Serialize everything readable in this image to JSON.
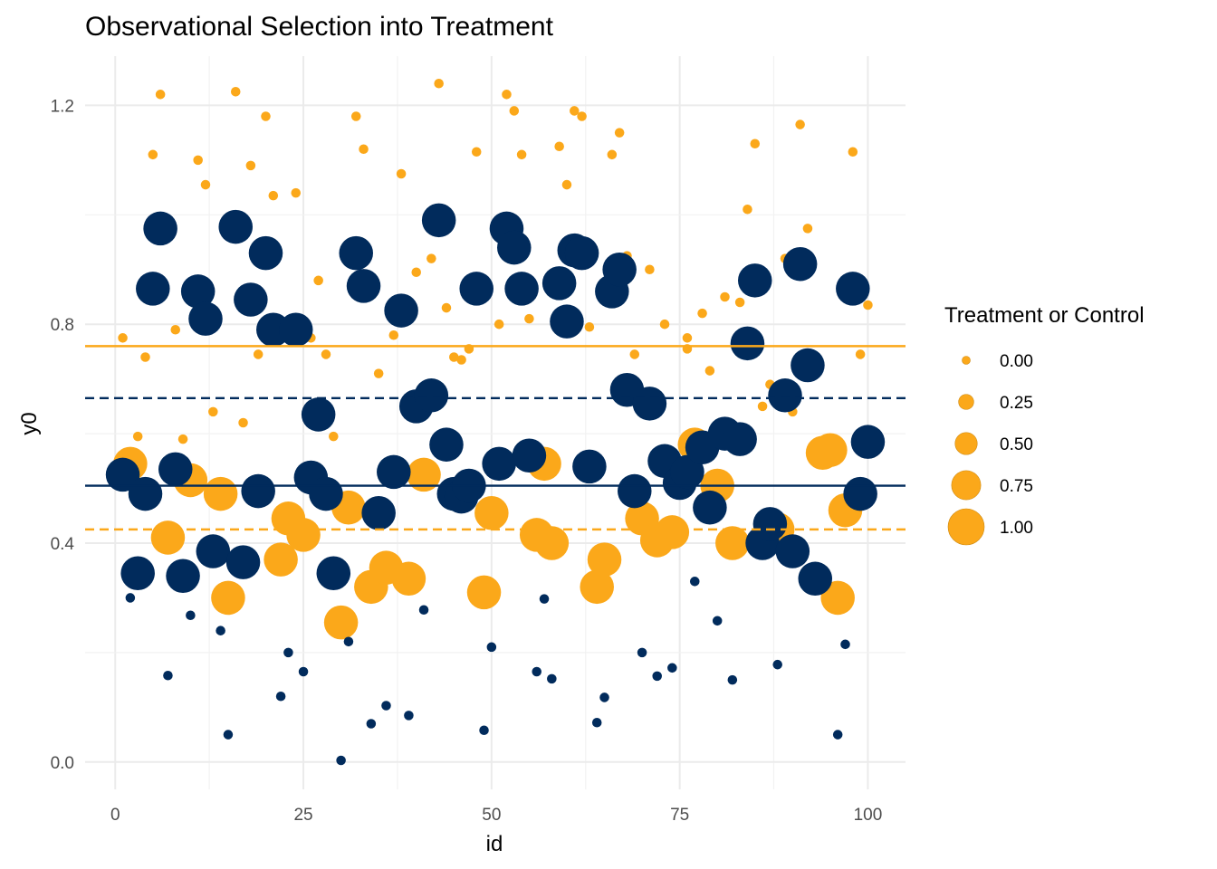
{
  "chart_data": {
    "type": "scatter",
    "title": "Observational Selection into Treatment",
    "xlabel": "id",
    "ylabel": "y0",
    "xlim": [
      -4,
      105
    ],
    "ylim": [
      -0.05,
      1.29
    ],
    "x_ticks": [
      0,
      25,
      50,
      75,
      100
    ],
    "x_tick_labels": [
      "0",
      "25",
      "50",
      "75",
      "100"
    ],
    "y_ticks": [
      0.0,
      0.4,
      0.8,
      1.2
    ],
    "y_tick_labels": [
      "0.0",
      "0.4",
      "0.8",
      "1.2"
    ],
    "grid": true,
    "legend": {
      "title": "Treatment or Control",
      "position": "right",
      "entries": [
        "0.00",
        "0.25",
        "0.50",
        "0.75",
        "1.00"
      ],
      "sizes": [
        0,
        0.25,
        0.5,
        0.75,
        1
      ]
    },
    "colors": {
      "treated": "#012B5C",
      "control": "#FBA81A"
    },
    "hlines": [
      {
        "group": "treated",
        "y": 0.505,
        "style": "solid"
      },
      {
        "group": "treated",
        "y": 0.665,
        "style": "dashed"
      },
      {
        "group": "control",
        "y": 0.76,
        "style": "solid"
      },
      {
        "group": "control",
        "y": 0.425,
        "style": "dashed"
      }
    ],
    "series": [
      {
        "group": "treated",
        "points": [
          [
            1,
            0.525,
            0.92
          ],
          [
            2,
            0.3,
            0.05
          ],
          [
            3,
            0.345,
            0.92
          ],
          [
            4,
            0.49,
            0.92
          ],
          [
            5,
            0.865,
            0.92
          ],
          [
            6,
            0.975,
            0.92
          ],
          [
            7,
            0.158,
            0.05
          ],
          [
            8,
            0.535,
            0.92
          ],
          [
            9,
            0.34,
            0.92
          ],
          [
            10,
            0.268,
            0.05
          ],
          [
            11,
            0.86,
            0.92
          ],
          [
            12,
            0.81,
            0.92
          ],
          [
            13,
            0.385,
            0.92
          ],
          [
            14,
            0.24,
            0.05
          ],
          [
            15,
            0.05,
            0.05
          ],
          [
            16,
            0.978,
            0.92
          ],
          [
            17,
            0.365,
            0.92
          ],
          [
            18,
            0.845,
            0.92
          ],
          [
            19,
            0.495,
            0.92
          ],
          [
            20,
            0.93,
            0.92
          ],
          [
            21,
            0.79,
            0.92
          ],
          [
            22,
            0.12,
            0.05
          ],
          [
            23,
            0.2,
            0.05
          ],
          [
            24,
            0.79,
            0.92
          ],
          [
            25,
            0.165,
            0.05
          ],
          [
            26,
            0.52,
            0.92
          ],
          [
            27,
            0.635,
            0.92
          ],
          [
            28,
            0.49,
            0.92
          ],
          [
            29,
            0.345,
            0.92
          ],
          [
            30,
            0.003,
            0.05
          ],
          [
            31,
            0.22,
            0.05
          ],
          [
            32,
            0.93,
            0.92
          ],
          [
            33,
            0.87,
            0.92
          ],
          [
            34,
            0.07,
            0.05
          ],
          [
            35,
            0.455,
            0.92
          ],
          [
            36,
            0.103,
            0.05
          ],
          [
            37,
            0.53,
            0.92
          ],
          [
            38,
            0.825,
            0.92
          ],
          [
            39,
            0.085,
            0.05
          ],
          [
            40,
            0.65,
            0.92
          ],
          [
            41,
            0.278,
            0.05
          ],
          [
            42,
            0.67,
            0.92
          ],
          [
            44,
            0.58,
            0.92
          ],
          [
            43,
            0.99,
            0.92
          ],
          [
            45,
            0.49,
            0.92
          ],
          [
            46,
            0.485,
            0.92
          ],
          [
            47,
            0.505,
            0.92
          ],
          [
            48,
            0.865,
            0.92
          ],
          [
            49,
            0.058,
            0.05
          ],
          [
            50,
            0.21,
            0.05
          ],
          [
            51,
            0.545,
            0.92
          ],
          [
            52,
            0.975,
            0.92
          ],
          [
            53,
            0.94,
            0.92
          ],
          [
            54,
            0.865,
            0.92
          ],
          [
            55,
            0.56,
            0.92
          ],
          [
            56,
            0.165,
            0.05
          ],
          [
            57,
            0.298,
            0.05
          ],
          [
            58,
            0.152,
            0.05
          ],
          [
            59,
            0.875,
            0.92
          ],
          [
            60,
            0.805,
            0.92
          ],
          [
            61,
            0.935,
            0.92
          ],
          [
            62,
            0.93,
            0.92
          ],
          [
            63,
            0.54,
            0.92
          ],
          [
            64,
            0.072,
            0.05
          ],
          [
            65,
            0.118,
            0.05
          ],
          [
            66,
            0.86,
            0.92
          ],
          [
            67,
            0.9,
            0.92
          ],
          [
            68,
            0.68,
            0.92
          ],
          [
            69,
            0.495,
            0.92
          ],
          [
            70,
            0.2,
            0.05
          ],
          [
            71,
            0.655,
            0.92
          ],
          [
            72,
            0.157,
            0.05
          ],
          [
            73,
            0.55,
            0.92
          ],
          [
            74,
            0.172,
            0.05
          ],
          [
            75,
            0.51,
            0.92
          ],
          [
            76,
            0.53,
            0.92
          ],
          [
            77,
            0.33,
            0.05
          ],
          [
            78,
            0.575,
            0.92
          ],
          [
            79,
            0.465,
            0.92
          ],
          [
            80,
            0.258,
            0.05
          ],
          [
            81,
            0.6,
            0.92
          ],
          [
            82,
            0.15,
            0.05
          ],
          [
            83,
            0.59,
            0.92
          ],
          [
            84,
            0.765,
            0.92
          ],
          [
            85,
            0.88,
            0.92
          ],
          [
            86,
            0.4,
            0.92
          ],
          [
            87,
            0.435,
            0.92
          ],
          [
            88,
            0.178,
            0.05
          ],
          [
            89,
            0.67,
            0.92
          ],
          [
            90,
            0.385,
            0.92
          ],
          [
            91,
            0.91,
            0.92
          ],
          [
            92,
            0.725,
            0.92
          ],
          [
            93,
            0.335,
            0.92
          ],
          [
            96,
            0.05,
            0.05
          ],
          [
            97,
            0.215,
            0.05
          ],
          [
            98,
            0.865,
            0.92
          ],
          [
            99,
            0.49,
            0.92
          ],
          [
            100,
            0.585,
            0.92
          ]
        ]
      },
      {
        "group": "control",
        "points": [
          [
            1,
            0.775,
            0.05
          ],
          [
            2,
            0.545,
            0.92
          ],
          [
            3,
            0.595,
            0.05
          ],
          [
            4,
            0.74,
            0.05
          ],
          [
            5,
            1.11,
            0.05
          ],
          [
            6,
            1.22,
            0.05
          ],
          [
            7,
            0.41,
            0.92
          ],
          [
            8,
            0.79,
            0.05
          ],
          [
            9,
            0.59,
            0.05
          ],
          [
            10,
            0.515,
            0.92
          ],
          [
            11,
            1.1,
            0.05
          ],
          [
            12,
            1.055,
            0.05
          ],
          [
            13,
            0.64,
            0.05
          ],
          [
            14,
            0.49,
            0.92
          ],
          [
            15,
            0.3,
            0.92
          ],
          [
            16,
            1.225,
            0.05
          ],
          [
            17,
            0.62,
            0.05
          ],
          [
            18,
            1.09,
            0.05
          ],
          [
            19,
            0.745,
            0.05
          ],
          [
            20,
            1.18,
            0.05
          ],
          [
            21,
            1.035,
            0.05
          ],
          [
            22,
            0.37,
            0.92
          ],
          [
            23,
            0.445,
            0.92
          ],
          [
            24,
            1.04,
            0.05
          ],
          [
            25,
            0.415,
            0.92
          ],
          [
            26,
            0.775,
            0.05
          ],
          [
            27,
            0.88,
            0.05
          ],
          [
            28,
            0.745,
            0.05
          ],
          [
            29,
            0.595,
            0.05
          ],
          [
            30,
            0.255,
            0.92
          ],
          [
            31,
            0.465,
            0.92
          ],
          [
            32,
            1.18,
            0.05
          ],
          [
            33,
            1.12,
            0.05
          ],
          [
            34,
            0.32,
            0.92
          ],
          [
            35,
            0.71,
            0.05
          ],
          [
            36,
            0.355,
            0.92
          ],
          [
            37,
            0.78,
            0.05
          ],
          [
            38,
            1.075,
            0.05
          ],
          [
            39,
            0.335,
            0.92
          ],
          [
            40,
            0.895,
            0.05
          ],
          [
            41,
            0.525,
            0.92
          ],
          [
            42,
            0.92,
            0.05
          ],
          [
            43,
            1.24,
            0.05
          ],
          [
            44,
            0.83,
            0.05
          ],
          [
            45,
            0.74,
            0.05
          ],
          [
            46,
            0.735,
            0.05
          ],
          [
            47,
            0.755,
            0.05
          ],
          [
            48,
            1.115,
            0.05
          ],
          [
            49,
            0.31,
            0.92
          ],
          [
            50,
            0.455,
            0.92
          ],
          [
            51,
            0.8,
            0.05
          ],
          [
            52,
            1.22,
            0.05
          ],
          [
            53,
            1.19,
            0.05
          ],
          [
            54,
            1.11,
            0.05
          ],
          [
            55,
            0.81,
            0.05
          ],
          [
            56,
            0.415,
            0.92
          ],
          [
            57,
            0.545,
            0.92
          ],
          [
            58,
            0.4,
            0.92
          ],
          [
            59,
            1.125,
            0.05
          ],
          [
            60,
            1.055,
            0.05
          ],
          [
            61,
            1.19,
            0.05
          ],
          [
            62,
            1.18,
            0.05
          ],
          [
            63,
            0.795,
            0.05
          ],
          [
            64,
            0.32,
            0.92
          ],
          [
            65,
            0.37,
            0.92
          ],
          [
            66,
            1.11,
            0.05
          ],
          [
            67,
            1.15,
            0.05
          ],
          [
            68,
            0.925,
            0.05
          ],
          [
            69,
            0.745,
            0.05
          ],
          [
            70,
            0.445,
            0.92
          ],
          [
            71,
            0.9,
            0.05
          ],
          [
            72,
            0.405,
            0.92
          ],
          [
            73,
            0.8,
            0.05
          ],
          [
            74,
            0.42,
            0.92
          ],
          [
            76,
            0.755,
            0.05
          ],
          [
            76,
            0.775,
            0.05
          ],
          [
            77,
            0.58,
            0.92
          ],
          [
            78,
            0.82,
            0.05
          ],
          [
            79,
            0.715,
            0.05
          ],
          [
            80,
            0.505,
            0.92
          ],
          [
            81,
            0.85,
            0.05
          ],
          [
            82,
            0.4,
            0.92
          ],
          [
            83,
            0.84,
            0.05
          ],
          [
            84,
            1.01,
            0.05
          ],
          [
            85,
            1.13,
            0.05
          ],
          [
            86,
            0.65,
            0.05
          ],
          [
            87,
            0.69,
            0.05
          ],
          [
            88,
            0.425,
            0.92
          ],
          [
            89,
            0.92,
            0.05
          ],
          [
            90,
            0.64,
            0.05
          ],
          [
            91,
            1.165,
            0.05
          ],
          [
            92,
            0.975,
            0.05
          ],
          [
            94,
            0.565,
            0.92
          ],
          [
            95,
            0.57,
            0.92
          ],
          [
            96,
            0.3,
            0.92
          ],
          [
            97,
            0.46,
            0.92
          ],
          [
            98,
            1.115,
            0.05
          ],
          [
            99,
            0.745,
            0.05
          ],
          [
            100,
            0.835,
            0.05
          ]
        ]
      }
    ]
  }
}
